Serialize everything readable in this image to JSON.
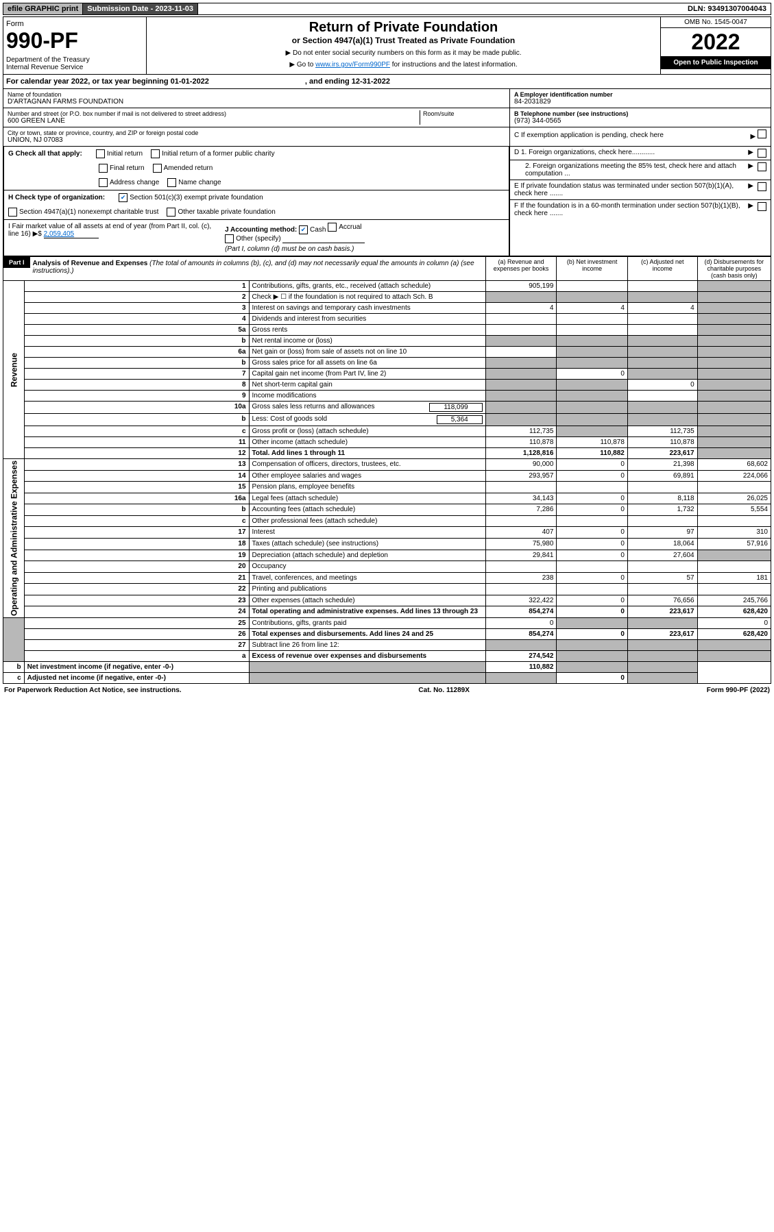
{
  "topbar": {
    "efile": "efile GRAPHIC print",
    "sublabel": "Submission Date - 2023-11-03",
    "dln": "DLN: 93491307004043"
  },
  "header": {
    "form_label": "Form",
    "form_num": "990-PF",
    "dept": "Department of the Treasury\nInternal Revenue Service",
    "title": "Return of Private Foundation",
    "subtitle": "or Section 4947(a)(1) Trust Treated as Private Foundation",
    "note1": "▶ Do not enter social security numbers on this form as it may be made public.",
    "note2_pre": "▶ Go to ",
    "note2_link": "www.irs.gov/Form990PF",
    "note2_post": " for instructions and the latest information.",
    "omb": "OMB No. 1545-0047",
    "year": "2022",
    "inspect": "Open to Public Inspection"
  },
  "calendar": {
    "text": "For calendar year 2022, or tax year beginning 01-01-2022",
    "ending": ", and ending 12-31-2022"
  },
  "entity": {
    "name_label": "Name of foundation",
    "name": "D'ARTAGNAN FARMS FOUNDATION",
    "addr_label": "Number and street (or P.O. box number if mail is not delivered to street address)",
    "addr": "600 GREEN LANE",
    "room_label": "Room/suite",
    "city_label": "City or town, state or province, country, and ZIP or foreign postal code",
    "city": "UNION, NJ  07083",
    "ein_label": "A Employer identification number",
    "ein": "84-2031829",
    "tel_label": "B Telephone number (see instructions)",
    "tel": "(973) 344-0565",
    "c_label": "C If exemption application is pending, check here"
  },
  "checks": {
    "g_label": "G Check all that apply:",
    "g_opts": [
      "Initial return",
      "Initial return of a former public charity",
      "Final return",
      "Amended return",
      "Address change",
      "Name change"
    ],
    "h_label": "H Check type of organization:",
    "h_501": "Section 501(c)(3) exempt private foundation",
    "h_4947": "Section 4947(a)(1) nonexempt charitable trust",
    "h_other": "Other taxable private foundation",
    "i_label": "I Fair market value of all assets at end of year (from Part II, col. (c), line 16)",
    "i_val": "2,059,405",
    "j_label": "J Accounting method:",
    "j_cash": "Cash",
    "j_accrual": "Accrual",
    "j_other": "Other (specify)",
    "j_note": "(Part I, column (d) must be on cash basis.)",
    "d1": "D 1. Foreign organizations, check here............",
    "d2": "2. Foreign organizations meeting the 85% test, check here and attach computation ...",
    "e": "E If private foundation status was terminated under section 507(b)(1)(A), check here .......",
    "f": "F If the foundation is in a 60-month termination under section 507(b)(1)(B), check here ......."
  },
  "part1": {
    "label": "Part I",
    "title": "Analysis of Revenue and Expenses",
    "note": "(The total of amounts in columns (b), (c), and (d) may not necessarily equal the amounts in column (a) (see instructions).)",
    "cols": {
      "a": "(a) Revenue and expenses per books",
      "b": "(b) Net investment income",
      "c": "(c) Adjusted net income",
      "d": "(d) Disbursements for charitable purposes (cash basis only)"
    }
  },
  "sides": {
    "rev": "Revenue",
    "exp": "Operating and Administrative Expenses"
  },
  "rows": [
    {
      "n": "1",
      "d": "Contributions, gifts, grants, etc., received (attach schedule)",
      "a": "905,199",
      "b": "",
      "c": "",
      "d_shade": true
    },
    {
      "n": "2",
      "d": "Check ▶ ☐ if the foundation is not required to attach Sch. B",
      "a_shade": true,
      "b_shade": true,
      "c_shade": true,
      "d_shade": true
    },
    {
      "n": "3",
      "d": "Interest on savings and temporary cash investments",
      "a": "4",
      "b": "4",
      "c": "4",
      "d_shade": true
    },
    {
      "n": "4",
      "d": "Dividends and interest from securities",
      "a": "",
      "b": "",
      "c": "",
      "d_shade": true
    },
    {
      "n": "5a",
      "d": "Gross rents",
      "a": "",
      "b": "",
      "c": "",
      "d_shade": true
    },
    {
      "n": "b",
      "d": "Net rental income or (loss)",
      "a_shade": true,
      "b_shade": true,
      "c_shade": true,
      "d_shade": true
    },
    {
      "n": "6a",
      "d": "Net gain or (loss) from sale of assets not on line 10",
      "a": "",
      "b_shade": true,
      "c_shade": true,
      "d_shade": true
    },
    {
      "n": "b",
      "d": "Gross sales price for all assets on line 6a",
      "a_shade": true,
      "b_shade": true,
      "c_shade": true,
      "d_shade": true
    },
    {
      "n": "7",
      "d": "Capital gain net income (from Part IV, line 2)",
      "a_shade": true,
      "b": "0",
      "c_shade": true,
      "d_shade": true
    },
    {
      "n": "8",
      "d": "Net short-term capital gain",
      "a_shade": true,
      "b_shade": true,
      "c": "0",
      "d_shade": true
    },
    {
      "n": "9",
      "d": "Income modifications",
      "a_shade": true,
      "b_shade": true,
      "c": "",
      "d_shade": true
    },
    {
      "n": "10a",
      "d": "Gross sales less returns and allowances",
      "extra": "118,099",
      "a_shade": true,
      "b_shade": true,
      "c_shade": true,
      "d_shade": true
    },
    {
      "n": "b",
      "d": "Less: Cost of goods sold",
      "extra": "5,364",
      "a_shade": true,
      "b_shade": true,
      "c_shade": true,
      "d_shade": true
    },
    {
      "n": "c",
      "d": "Gross profit or (loss) (attach schedule)",
      "a": "112,735",
      "b_shade": true,
      "c": "112,735",
      "d_shade": true
    },
    {
      "n": "11",
      "d": "Other income (attach schedule)",
      "a": "110,878",
      "b": "110,878",
      "c": "110,878",
      "d_shade": true
    },
    {
      "n": "12",
      "d": "Total. Add lines 1 through 11",
      "bold": true,
      "a": "1,128,816",
      "b": "110,882",
      "c": "223,617",
      "d_shade": true
    },
    {
      "n": "13",
      "d": "Compensation of officers, directors, trustees, etc.",
      "a": "90,000",
      "b": "0",
      "c": "21,398",
      "dd": "68,602"
    },
    {
      "n": "14",
      "d": "Other employee salaries and wages",
      "a": "293,957",
      "b": "0",
      "c": "69,891",
      "dd": "224,066"
    },
    {
      "n": "15",
      "d": "Pension plans, employee benefits",
      "a": "",
      "b": "",
      "c": "",
      "dd": ""
    },
    {
      "n": "16a",
      "d": "Legal fees (attach schedule)",
      "a": "34,143",
      "b": "0",
      "c": "8,118",
      "dd": "26,025"
    },
    {
      "n": "b",
      "d": "Accounting fees (attach schedule)",
      "a": "7,286",
      "b": "0",
      "c": "1,732",
      "dd": "5,554"
    },
    {
      "n": "c",
      "d": "Other professional fees (attach schedule)",
      "a": "",
      "b": "",
      "c": "",
      "dd": ""
    },
    {
      "n": "17",
      "d": "Interest",
      "a": "407",
      "b": "0",
      "c": "97",
      "dd": "310"
    },
    {
      "n": "18",
      "d": "Taxes (attach schedule) (see instructions)",
      "a": "75,980",
      "b": "0",
      "c": "18,064",
      "dd": "57,916"
    },
    {
      "n": "19",
      "d": "Depreciation (attach schedule) and depletion",
      "a": "29,841",
      "b": "0",
      "c": "27,604",
      "d_shade": true
    },
    {
      "n": "20",
      "d": "Occupancy",
      "a": "",
      "b": "",
      "c": "",
      "dd": ""
    },
    {
      "n": "21",
      "d": "Travel, conferences, and meetings",
      "a": "238",
      "b": "0",
      "c": "57",
      "dd": "181"
    },
    {
      "n": "22",
      "d": "Printing and publications",
      "a": "",
      "b": "",
      "c": "",
      "dd": ""
    },
    {
      "n": "23",
      "d": "Other expenses (attach schedule)",
      "a": "322,422",
      "b": "0",
      "c": "76,656",
      "dd": "245,766"
    },
    {
      "n": "24",
      "d": "Total operating and administrative expenses. Add lines 13 through 23",
      "bold": true,
      "a": "854,274",
      "b": "0",
      "c": "223,617",
      "dd": "628,420"
    },
    {
      "n": "25",
      "d": "Contributions, gifts, grants paid",
      "a": "0",
      "b_shade": true,
      "c_shade": true,
      "dd": "0"
    },
    {
      "n": "26",
      "d": "Total expenses and disbursements. Add lines 24 and 25",
      "bold": true,
      "a": "854,274",
      "b": "0",
      "c": "223,617",
      "dd": "628,420"
    },
    {
      "n": "27",
      "d": "Subtract line 26 from line 12:",
      "a_shade": true,
      "b_shade": true,
      "c_shade": true,
      "d_shade": true
    },
    {
      "n": "a",
      "d": "Excess of revenue over expenses and disbursements",
      "bold": true,
      "a": "274,542",
      "b_shade": true,
      "c_shade": true,
      "d_shade": true
    },
    {
      "n": "b",
      "d": "Net investment income (if negative, enter -0-)",
      "bold": true,
      "a_shade": true,
      "b": "110,882",
      "c_shade": true,
      "d_shade": true
    },
    {
      "n": "c",
      "d": "Adjusted net income (if negative, enter -0-)",
      "bold": true,
      "a_shade": true,
      "b_shade": true,
      "c": "0",
      "d_shade": true
    }
  ],
  "footer": {
    "left": "For Paperwork Reduction Act Notice, see instructions.",
    "mid": "Cat. No. 11289X",
    "right": "Form 990-PF (2022)"
  }
}
